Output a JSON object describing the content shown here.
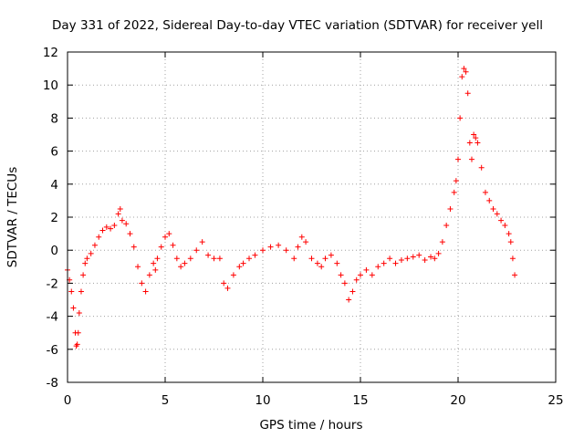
{
  "chart_data": {
    "type": "scatter",
    "title": "Day 331 of 2022, Sidereal Day-to-day VTEC variation (SDTVAR) for receiver yell",
    "xlabel": "GPS time / hours",
    "ylabel": "SDTVAR / TECUs",
    "xlim": [
      0,
      25
    ],
    "ylim": [
      -8,
      12
    ],
    "xticks": [
      0,
      5,
      10,
      15,
      20,
      25
    ],
    "xtick_labels": [
      "0",
      "5",
      "10",
      "15",
      "20",
      "25"
    ],
    "yticks": [
      -8,
      -6,
      -4,
      -2,
      0,
      2,
      4,
      6,
      8,
      10,
      12
    ],
    "ytick_labels": [
      "-8",
      "-6",
      "-4",
      "-2",
      "0",
      "2",
      "4",
      "6",
      "8",
      "10",
      "12"
    ],
    "grid": true,
    "marker": "+",
    "color": "#ff0000",
    "series": [
      {
        "name": "SDTVAR",
        "x": [
          0.0,
          0.1,
          0.2,
          0.3,
          0.4,
          0.45,
          0.5,
          0.55,
          0.6,
          0.7,
          0.8,
          0.9,
          1.0,
          1.2,
          1.4,
          1.6,
          1.8,
          2.0,
          2.2,
          2.4,
          2.6,
          2.7,
          2.8,
          3.0,
          3.2,
          3.4,
          3.6,
          3.8,
          4.0,
          4.2,
          4.4,
          4.5,
          4.6,
          4.8,
          5.0,
          5.2,
          5.4,
          5.6,
          5.8,
          6.0,
          6.3,
          6.6,
          6.9,
          7.2,
          7.5,
          7.8,
          8.0,
          8.2,
          8.5,
          8.8,
          9.0,
          9.3,
          9.6,
          10.0,
          10.4,
          10.8,
          11.2,
          11.6,
          11.8,
          12.0,
          12.2,
          12.5,
          12.8,
          13.0,
          13.2,
          13.5,
          13.8,
          14.0,
          14.2,
          14.4,
          14.6,
          14.8,
          15.0,
          15.3,
          15.6,
          15.9,
          16.2,
          16.5,
          16.8,
          17.1,
          17.4,
          17.7,
          18.0,
          18.3,
          18.6,
          18.8,
          19.0,
          19.2,
          19.4,
          19.6,
          19.8,
          19.9,
          20.0,
          20.1,
          20.2,
          20.3,
          20.4,
          20.5,
          20.6,
          20.7,
          20.8,
          20.9,
          21.0,
          21.2,
          21.4,
          21.6,
          21.8,
          22.0,
          22.2,
          22.4,
          22.6,
          22.7,
          22.8,
          22.9
        ],
        "y": [
          -1.2,
          -1.8,
          -2.5,
          -3.5,
          -5.0,
          -5.8,
          -5.7,
          -5.0,
          -3.8,
          -2.5,
          -1.5,
          -0.8,
          -0.5,
          -0.2,
          0.3,
          0.8,
          1.2,
          1.4,
          1.3,
          1.5,
          2.2,
          2.5,
          1.8,
          1.6,
          1.0,
          0.2,
          -1.0,
          -2.0,
          -2.5,
          -1.5,
          -0.8,
          -1.2,
          -0.5,
          0.2,
          0.8,
          1.0,
          0.3,
          -0.5,
          -1.0,
          -0.8,
          -0.5,
          0.0,
          0.5,
          -0.3,
          -0.5,
          -0.5,
          -2.0,
          -2.3,
          -1.5,
          -1.0,
          -0.8,
          -0.5,
          -0.3,
          0.0,
          0.2,
          0.3,
          0.0,
          -0.5,
          0.2,
          0.8,
          0.5,
          -0.5,
          -0.8,
          -1.0,
          -0.5,
          -0.3,
          -0.8,
          -1.5,
          -2.0,
          -3.0,
          -2.5,
          -1.8,
          -1.5,
          -1.2,
          -1.5,
          -1.0,
          -0.8,
          -0.5,
          -0.8,
          -0.6,
          -0.5,
          -0.4,
          -0.3,
          -0.6,
          -0.4,
          -0.5,
          -0.2,
          0.5,
          1.5,
          2.5,
          3.5,
          4.2,
          5.5,
          8.0,
          10.5,
          11.0,
          10.8,
          9.5,
          6.5,
          5.5,
          7.0,
          6.8,
          6.5,
          5.0,
          3.5,
          3.0,
          2.5,
          2.2,
          1.8,
          1.5,
          1.0,
          0.5,
          -0.5,
          -1.5
        ]
      }
    ]
  }
}
